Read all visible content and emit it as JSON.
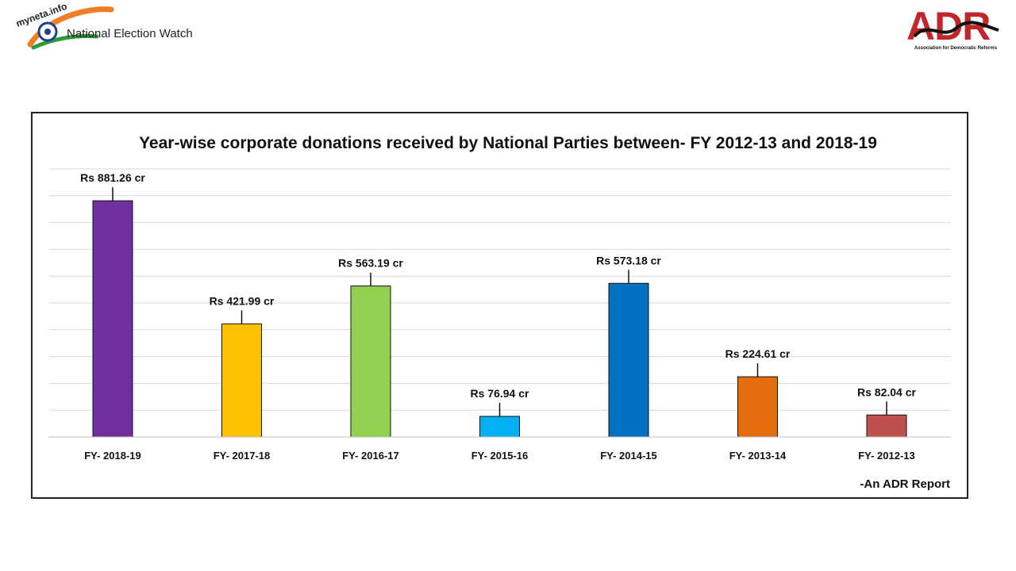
{
  "header": {
    "left_logo": {
      "badge_text": "myneta.info",
      "label": "National Election Watch"
    },
    "right_logo": {
      "abbr": "ADR",
      "full_name": "Association for Democratic Reforms",
      "color": "#c0272d"
    }
  },
  "chart_data": {
    "type": "bar",
    "title": "Year-wise corporate donations received by National Parties between- FY 2012-13 and 2018-19",
    "categories": [
      "FY- 2018-19",
      "FY- 2017-18",
      "FY- 2016-17",
      "FY- 2015-16",
      "FY- 2014-15",
      "FY- 2013-14",
      "FY- 2012-13"
    ],
    "values": [
      881.26,
      421.99,
      563.19,
      76.94,
      573.18,
      224.61,
      82.04
    ],
    "data_labels": [
      "Rs 881.26 cr",
      "Rs 421.99 cr",
      "Rs 563.19 cr",
      "Rs 76.94 cr",
      "Rs 573.18 cr",
      "Rs 224.61 cr",
      "Rs 82.04 cr"
    ],
    "colors": [
      "#7030a0",
      "#ffc000",
      "#92d050",
      "#00b0f0",
      "#0070c0",
      "#e46c0a",
      "#c0504d"
    ],
    "xlabel": "",
    "ylabel": "",
    "ylim": [
      0,
      1000
    ],
    "grid": true,
    "legend": "none",
    "source_note": "-An ADR Report"
  }
}
